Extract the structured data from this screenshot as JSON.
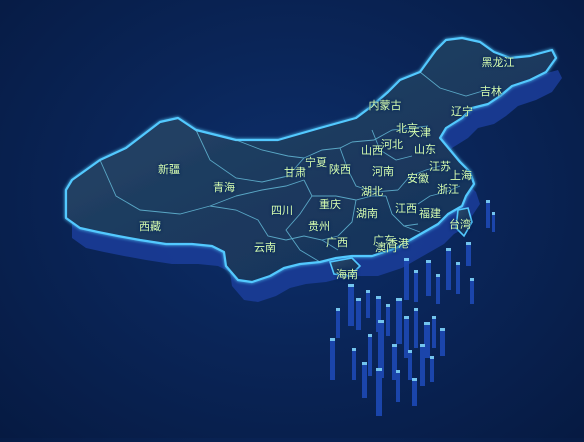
{
  "colors": {
    "background": "#0a2558",
    "land_top": "#1d3e62",
    "land_side": "#1b3d9a",
    "border_glow": "#52c9ff",
    "label": "#d9ffb0"
  },
  "map": {
    "regions": [
      {
        "key": "heilongjiang",
        "name": "黑龙江"
      },
      {
        "key": "jilin",
        "name": "吉林"
      },
      {
        "key": "liaoning",
        "name": "辽宁"
      },
      {
        "key": "neimenggu",
        "name": "内蒙古"
      },
      {
        "key": "beijing",
        "name": "北京"
      },
      {
        "key": "tianjin",
        "name": "天津"
      },
      {
        "key": "hebei",
        "name": "河北"
      },
      {
        "key": "shanxi",
        "name": "山西"
      },
      {
        "key": "shandong",
        "name": "山东"
      },
      {
        "key": "xinjiang",
        "name": "新疆"
      },
      {
        "key": "qinghai",
        "name": "青海"
      },
      {
        "key": "gansu",
        "name": "甘肃"
      },
      {
        "key": "ningxia",
        "name": "宁夏"
      },
      {
        "key": "shaanxi",
        "name": "陕西"
      },
      {
        "key": "henan",
        "name": "河南"
      },
      {
        "key": "jiangsu",
        "name": "江苏"
      },
      {
        "key": "anhui",
        "name": "安徽"
      },
      {
        "key": "shanghai",
        "name": "上海"
      },
      {
        "key": "zhejiang",
        "name": "浙江"
      },
      {
        "key": "hubei",
        "name": "湖北"
      },
      {
        "key": "xizang",
        "name": "西藏"
      },
      {
        "key": "sichuan",
        "name": "四川"
      },
      {
        "key": "chongqing",
        "name": "重庆"
      },
      {
        "key": "hunan",
        "name": "湖南"
      },
      {
        "key": "jiangxi",
        "name": "江西"
      },
      {
        "key": "fujian",
        "name": "福建"
      },
      {
        "key": "taiwan",
        "name": "台湾"
      },
      {
        "key": "guizhou",
        "name": "贵州"
      },
      {
        "key": "yunnan",
        "name": "云南"
      },
      {
        "key": "guangxi",
        "name": "广西"
      },
      {
        "key": "guangdong",
        "name": "广东"
      },
      {
        "key": "aomen",
        "name": "澳门"
      },
      {
        "key": "xianggang",
        "name": "香港"
      },
      {
        "key": "hainan",
        "name": "海南"
      }
    ]
  }
}
